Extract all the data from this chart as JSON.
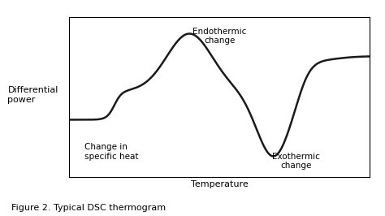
{
  "title": "Figure 2. Typical DSC thermogram",
  "xlabel": "Temperature",
  "ylabel": "Differential\npower",
  "annotation_endothermic": "Endothermic\nchange",
  "annotation_exothermic": "Exothermic\nchange",
  "annotation_specific_heat": "Change in\nspecific heat",
  "line_color": "#1a1a1a",
  "background_color": "#ffffff",
  "line_width": 1.8,
  "title_fontsize": 8,
  "label_fontsize": 8,
  "annotation_fontsize": 7.5,
  "ylabel_fontsize": 8
}
